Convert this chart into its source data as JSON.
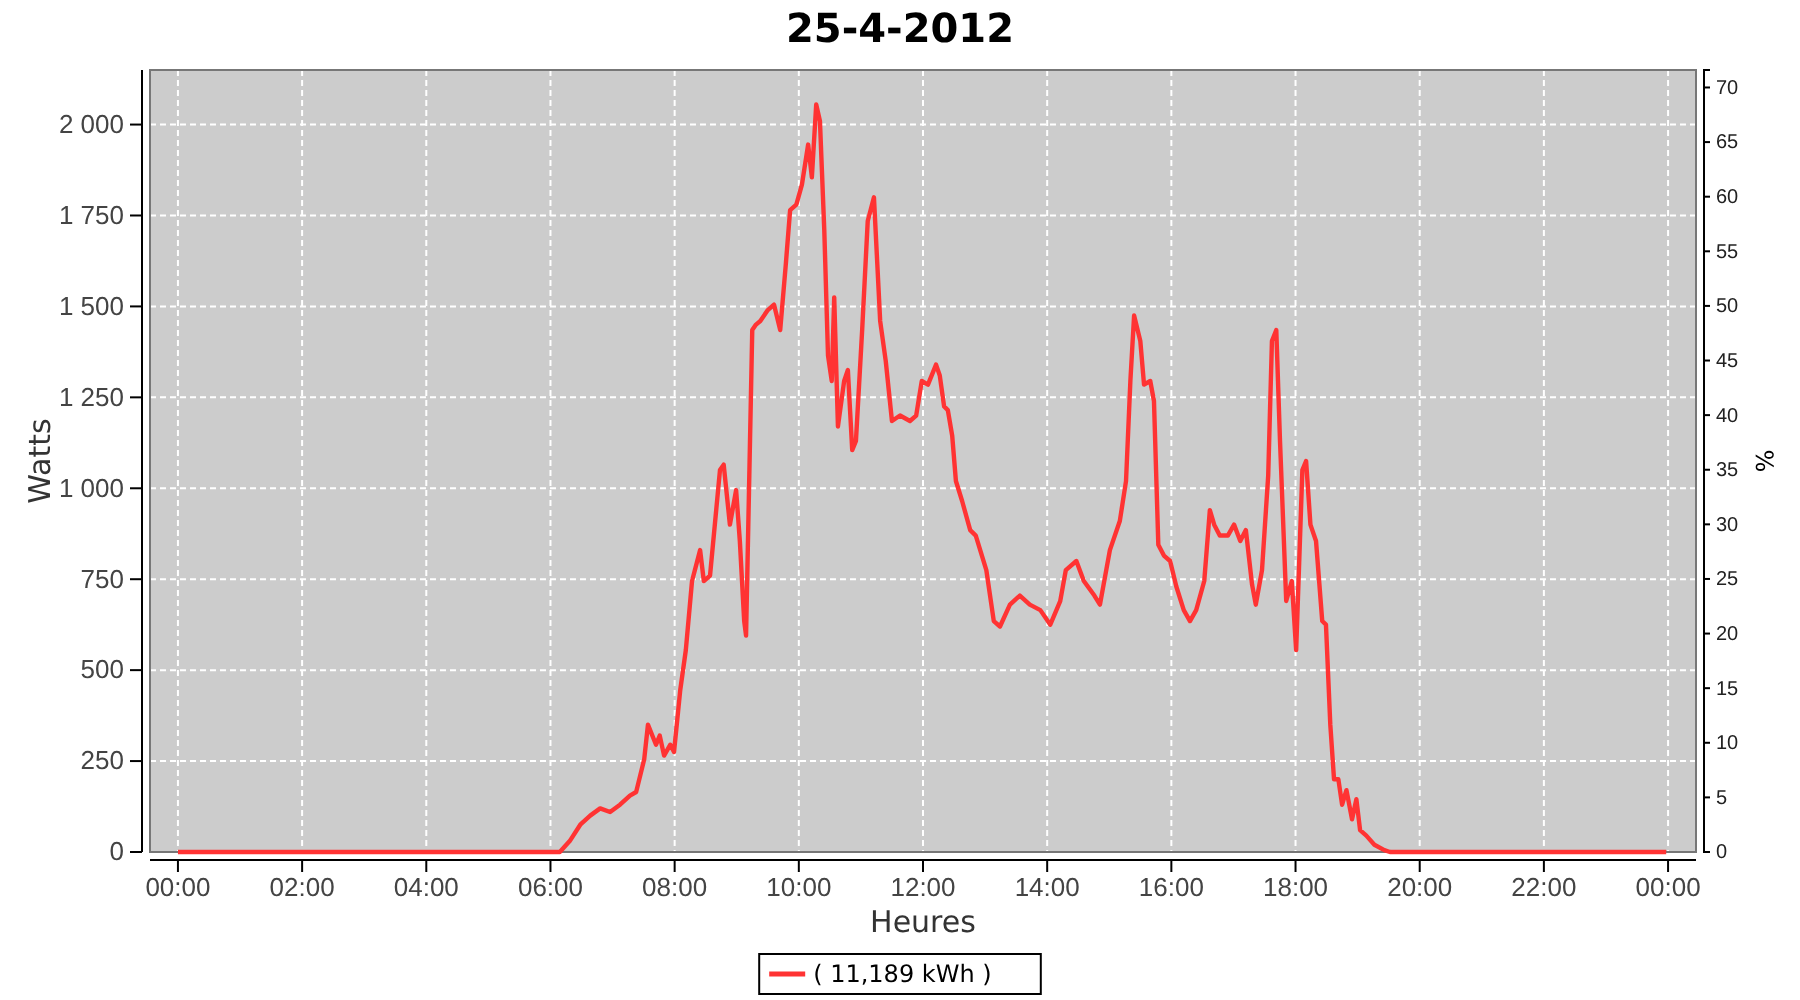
{
  "chart_data": {
    "type": "line",
    "title": "25-4-2012",
    "xlabel": "Heures",
    "ylabel": "Watts",
    "y2label": "%",
    "xlim": [
      -0.45,
      24.45
    ],
    "ylim": [
      0,
      2150
    ],
    "y2lim": [
      0,
      71.6
    ],
    "xticks": [
      {
        "value": 0,
        "label": "00:00"
      },
      {
        "value": 2,
        "label": "02:00"
      },
      {
        "value": 4,
        "label": "04:00"
      },
      {
        "value": 6,
        "label": "06:00"
      },
      {
        "value": 8,
        "label": "08:00"
      },
      {
        "value": 10,
        "label": "10:00"
      },
      {
        "value": 12,
        "label": "12:00"
      },
      {
        "value": 14,
        "label": "14:00"
      },
      {
        "value": 16,
        "label": "16:00"
      },
      {
        "value": 18,
        "label": "18:00"
      },
      {
        "value": 20,
        "label": "20:00"
      },
      {
        "value": 22,
        "label": "22:00"
      },
      {
        "value": 24,
        "label": "00:00"
      }
    ],
    "yticks": [
      0,
      250,
      500,
      750,
      {
        "value": 1000,
        "label": "1 000"
      },
      {
        "value": 1250,
        "label": "1 250"
      },
      {
        "value": 1500,
        "label": "1 500"
      },
      {
        "value": 1750,
        "label": "1 750"
      },
      {
        "value": 2000,
        "label": "2 000"
      }
    ],
    "y2ticks": [
      0,
      5,
      10,
      15,
      20,
      25,
      30,
      35,
      40,
      45,
      50,
      55,
      60,
      65,
      70
    ],
    "grid": true,
    "legend": "bottom",
    "marker": "none",
    "line_style": "solid",
    "series": [
      {
        "name": "( 11,189 kWh )",
        "color": "#ff3333",
        "x": [
          0,
          6.15,
          6.31,
          6.48,
          6.64,
          6.8,
          6.96,
          7.12,
          7.28,
          7.38,
          7.51,
          7.57,
          7.7,
          7.76,
          7.83,
          7.93,
          7.99,
          8.09,
          8.18,
          8.28,
          8.41,
          8.47,
          8.57,
          8.73,
          8.79,
          8.89,
          8.99,
          9.05,
          9.12,
          9.15,
          9.25,
          9.31,
          9.38,
          9.5,
          9.6,
          9.7,
          9.79,
          9.86,
          9.96,
          10.05,
          10.15,
          10.21,
          10.28,
          10.34,
          10.41,
          10.47,
          10.53,
          10.57,
          10.63,
          10.73,
          10.79,
          10.86,
          10.92,
          11.02,
          11.11,
          11.21,
          11.31,
          11.4,
          11.5,
          11.63,
          11.79,
          11.89,
          11.98,
          12.08,
          12.21,
          12.27,
          12.34,
          12.4,
          12.47,
          12.53,
          12.63,
          12.76,
          12.85,
          13.02,
          13.14,
          13.24,
          13.4,
          13.56,
          13.72,
          13.89,
          14.05,
          14.21,
          14.3,
          14.47,
          14.59,
          14.76,
          14.85,
          15.01,
          15.17,
          15.27,
          15.34,
          15.4,
          15.5,
          15.56,
          15.66,
          15.72,
          15.79,
          15.88,
          15.98,
          16.08,
          16.2,
          16.3,
          16.4,
          16.53,
          16.62,
          16.69,
          16.78,
          16.91,
          17.01,
          17.11,
          17.2,
          17.3,
          17.36,
          17.46,
          17.56,
          17.62,
          17.69,
          17.75,
          17.85,
          17.94,
          18.01,
          18.11,
          18.17,
          18.24,
          18.33,
          18.43,
          18.49,
          18.56,
          18.62,
          18.69,
          18.75,
          18.82,
          18.91,
          18.98,
          19.04,
          19.14,
          19.27,
          19.43,
          19.52,
          23.97
        ],
        "values": [
          0,
          0,
          30,
          75,
          100,
          120,
          110,
          130,
          155,
          165,
          255,
          350,
          295,
          320,
          265,
          295,
          275,
          445,
          555,
          745,
          830,
          745,
          760,
          1050,
          1065,
          900,
          995,
          855,
          635,
          595,
          1435,
          1450,
          1460,
          1490,
          1505,
          1435,
          1615,
          1765,
          1780,
          1835,
          1945,
          1855,
          2055,
          2010,
          1710,
          1365,
          1295,
          1525,
          1170,
          1295,
          1325,
          1105,
          1130,
          1435,
          1735,
          1800,
          1460,
          1350,
          1185,
          1200,
          1185,
          1200,
          1295,
          1285,
          1340,
          1310,
          1225,
          1215,
          1145,
          1020,
          965,
          885,
          870,
          775,
          635,
          620,
          680,
          705,
          680,
          665,
          625,
          690,
          775,
          800,
          745,
          705,
          680,
          830,
          910,
          1020,
          1295,
          1475,
          1405,
          1285,
          1295,
          1240,
          845,
          815,
          800,
          730,
          665,
          635,
          665,
          745,
          940,
          900,
          870,
          870,
          900,
          855,
          885,
          735,
          680,
          775,
          1035,
          1405,
          1435,
          1130,
          690,
          745,
          555,
          1050,
          1075,
          900,
          855,
          635,
          625,
          350,
          200,
          200,
          130,
          170,
          90,
          145,
          60,
          45,
          20,
          5,
          0,
          0
        ]
      }
    ]
  }
}
